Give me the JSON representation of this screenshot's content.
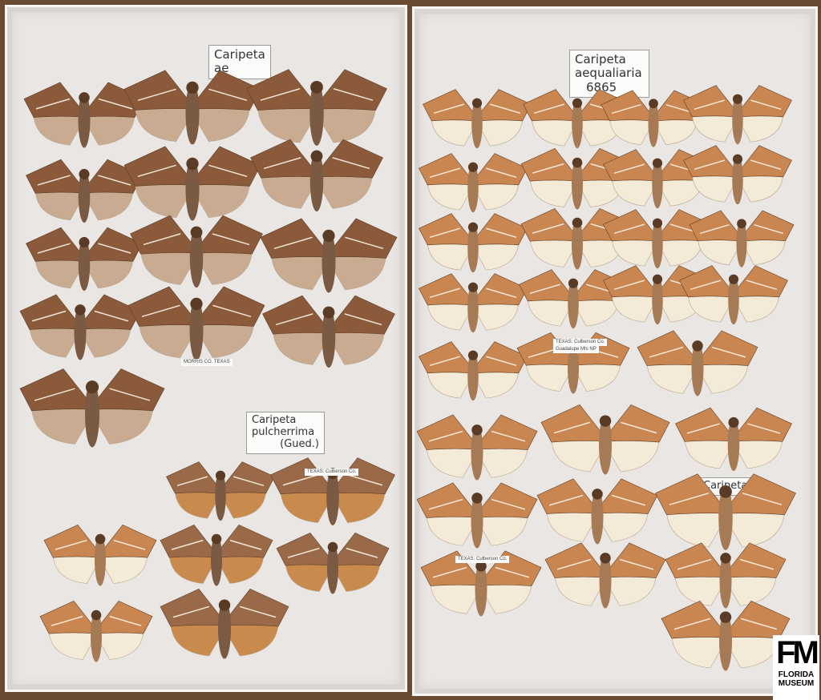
{
  "photo": {
    "subject": "Caripeta moth specimen drawers",
    "left_tray": {
      "labels": [
        {
          "lines": [
            "Caripeta",
            "ae"
          ]
        },
        {
          "lines": [
            "Caripeta",
            "pulcherrima",
            "(Gued.)"
          ]
        }
      ],
      "small_labels": [
        "MORRIS CO. TEXAS",
        "TEXAS: Culberson Co."
      ]
    },
    "right_tray": {
      "labels": [
        {
          "lines": [
            "Caripeta",
            "aequaliaria",
            "6865"
          ]
        },
        {
          "lines": [
            "Caripeta"
          ]
        }
      ],
      "small_labels": [
        "TEXAS: Culberson Co.",
        "Guadalupe Mts NP",
        "TEXAS: Culberson Co."
      ]
    },
    "colors": {
      "dark_moth": "#8a5a3a",
      "orange_moth": "#c98a4e",
      "pale_hindwing": "#f3ead8",
      "tray": "#e9e6e3"
    }
  },
  "logo": {
    "mark": "FM",
    "line1": "FLORIDA",
    "line2": "MUSEUM"
  }
}
